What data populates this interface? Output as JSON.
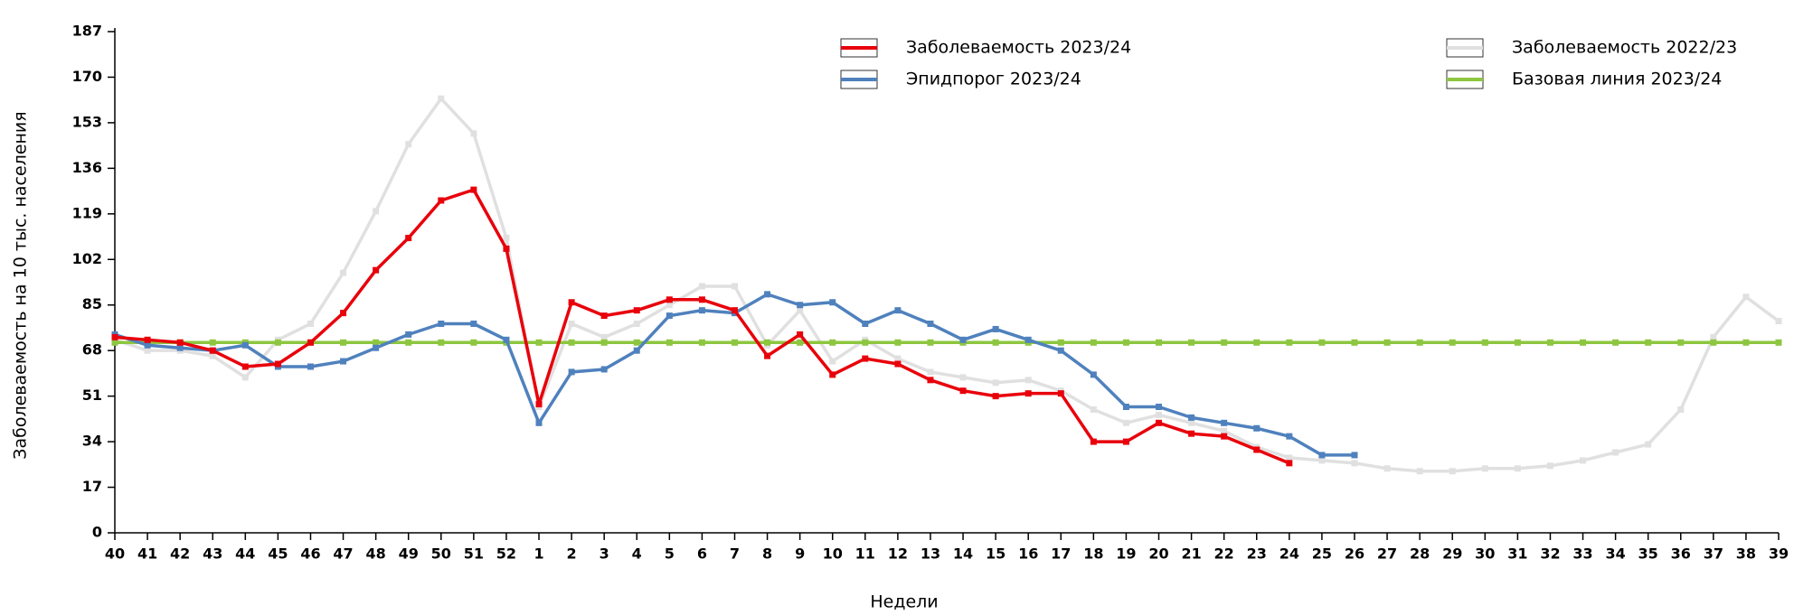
{
  "chart_data": {
    "type": "line",
    "x_label": "Недели",
    "y_label": "Заболеваемость на 10 тыс. населения",
    "categories": [
      "40",
      "41",
      "42",
      "43",
      "44",
      "45",
      "46",
      "47",
      "48",
      "49",
      "50",
      "51",
      "52",
      "1",
      "2",
      "3",
      "4",
      "5",
      "6",
      "7",
      "8",
      "9",
      "10",
      "11",
      "12",
      "13",
      "14",
      "15",
      "16",
      "17",
      "18",
      "19",
      "20",
      "21",
      "22",
      "23",
      "24",
      "25",
      "26",
      "27",
      "28",
      "29",
      "30",
      "31",
      "32",
      "33",
      "34",
      "35",
      "36",
      "37",
      "38",
      "39"
    ],
    "ylim": [
      0,
      187
    ],
    "yticks": [
      0,
      17,
      34,
      51,
      68,
      85,
      102,
      119,
      136,
      153,
      170,
      187
    ],
    "series": [
      {
        "name": "Заболеваемость 2022/23",
        "color": "#e0e0e0",
        "values": [
          72,
          68,
          68,
          66,
          58,
          72,
          78,
          97,
          120,
          145,
          162,
          149,
          110,
          47,
          78,
          73,
          78,
          85,
          92,
          92,
          70,
          83,
          64,
          72,
          65,
          60,
          58,
          56,
          57,
          53,
          46,
          41,
          44,
          41,
          38,
          32,
          28,
          27,
          26,
          24,
          23,
          23,
          24,
          24,
          25,
          27,
          30,
          33,
          46,
          73,
          88,
          79
        ]
      },
      {
        "name": "Базовая линия 2023/24",
        "color": "#8dc63f",
        "values": [
          71,
          71,
          71,
          71,
          71,
          71,
          71,
          71,
          71,
          71,
          71,
          71,
          71,
          71,
          71,
          71,
          71,
          71,
          71,
          71,
          71,
          71,
          71,
          71,
          71,
          71,
          71,
          71,
          71,
          71,
          71,
          71,
          71,
          71,
          71,
          71,
          71,
          71,
          71,
          71,
          71,
          71,
          71,
          71,
          71,
          71,
          71,
          71,
          71,
          71,
          71,
          71
        ]
      },
      {
        "name": "Эпидпорог 2023/24",
        "color": "#4f81bd",
        "values": [
          74,
          70,
          69,
          68,
          70,
          62,
          62,
          64,
          69,
          74,
          78,
          78,
          72,
          41,
          60,
          61,
          68,
          81,
          83,
          82,
          89,
          85,
          86,
          78,
          83,
          78,
          72,
          76,
          72,
          68,
          59,
          47,
          47,
          43,
          41,
          39,
          36,
          29,
          29,
          null,
          null,
          null,
          null,
          null,
          null,
          null,
          null,
          null,
          null,
          null,
          null,
          null
        ]
      },
      {
        "name": "Заболеваемость 2023/24",
        "color": "#e8000b",
        "values": [
          73,
          72,
          71,
          68,
          62,
          63,
          71,
          82,
          98,
          110,
          124,
          128,
          106,
          48,
          86,
          81,
          83,
          87,
          87,
          83,
          66,
          74,
          59,
          65,
          63,
          57,
          53,
          51,
          52,
          52,
          34,
          34,
          41,
          37,
          36,
          31,
          26,
          null,
          null,
          null,
          null,
          null,
          null,
          null,
          null,
          null,
          null,
          null,
          null,
          null,
          null,
          null
        ]
      }
    ]
  }
}
